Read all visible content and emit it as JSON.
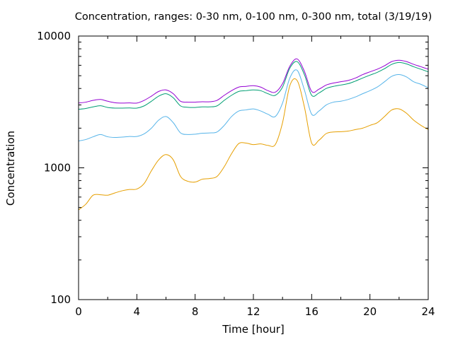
{
  "chart_data": {
    "type": "line",
    "title": "Concentration, ranges: 0-30 nm, 0-100 nm, 0-300 nm, total (3/19/19)",
    "xlabel": "Time [hour]",
    "ylabel": "Concentration",
    "xlim": [
      0,
      24
    ],
    "ylim": [
      100,
      10000
    ],
    "y_scale": "log",
    "grid": false,
    "legend": "none",
    "x_ticks": [
      0,
      4,
      8,
      12,
      16,
      20,
      24
    ],
    "x_tick_labels": [
      "0",
      "4",
      "8",
      "12",
      "16",
      "20",
      "24"
    ],
    "y_ticks": [
      100,
      1000,
      10000
    ],
    "y_tick_labels": [
      "100",
      "1000",
      "10000"
    ],
    "series": [
      {
        "color": "#e69f00",
        "x": [
          0,
          0.5,
          1,
          1.5,
          2,
          2.5,
          3,
          3.5,
          4,
          4.5,
          5,
          5.5,
          6,
          6.5,
          7,
          7.5,
          8,
          8.5,
          9,
          9.5,
          10,
          10.5,
          11,
          11.5,
          12,
          12.5,
          13,
          13.5,
          14,
          14.5,
          15,
          15.5,
          16,
          16.5,
          17,
          17.5,
          18,
          18.5,
          19,
          19.5,
          20,
          20.5,
          21,
          21.5,
          22,
          22.5,
          23,
          23.5,
          24
        ],
        "y": [
          480,
          530,
          620,
          625,
          620,
          645,
          670,
          685,
          690,
          760,
          950,
          1150,
          1260,
          1150,
          860,
          790,
          780,
          820,
          830,
          860,
          1020,
          1280,
          1530,
          1540,
          1500,
          1520,
          1480,
          1500,
          2200,
          4200,
          4600,
          2900,
          1540,
          1620,
          1820,
          1870,
          1880,
          1900,
          1950,
          2000,
          2100,
          2200,
          2450,
          2750,
          2800,
          2600,
          2300,
          2100,
          1950
        ]
      },
      {
        "color": "#56b4e9",
        "x": [
          0,
          0.5,
          1,
          1.5,
          2,
          2.5,
          3,
          3.5,
          4,
          4.5,
          5,
          5.5,
          6,
          6.5,
          7,
          7.5,
          8,
          8.5,
          9,
          9.5,
          10,
          10.5,
          11,
          11.5,
          12,
          12.5,
          13,
          13.5,
          14,
          14.5,
          15,
          15.5,
          16,
          16.5,
          17,
          17.5,
          18,
          18.5,
          19,
          19.5,
          20,
          20.5,
          21,
          21.5,
          22,
          22.5,
          23,
          23.5,
          24
        ],
        "y": [
          1600,
          1640,
          1720,
          1790,
          1720,
          1700,
          1710,
          1730,
          1730,
          1810,
          2000,
          2300,
          2450,
          2200,
          1840,
          1790,
          1800,
          1830,
          1840,
          1870,
          2100,
          2450,
          2700,
          2750,
          2800,
          2700,
          2550,
          2450,
          3100,
          4800,
          5500,
          3900,
          2550,
          2700,
          3000,
          3150,
          3200,
          3300,
          3450,
          3650,
          3850,
          4100,
          4500,
          4950,
          5100,
          4900,
          4500,
          4300,
          4050
        ]
      },
      {
        "color": "#009e73",
        "x": [
          0,
          0.5,
          1,
          1.5,
          2,
          2.5,
          3,
          3.5,
          4,
          4.5,
          5,
          5.5,
          6,
          6.5,
          7,
          7.5,
          8,
          8.5,
          9,
          9.5,
          10,
          10.5,
          11,
          11.5,
          12,
          12.5,
          13,
          13.5,
          14,
          14.5,
          15,
          15.5,
          16,
          16.5,
          17,
          17.5,
          18,
          18.5,
          19,
          19.5,
          20,
          20.5,
          21,
          21.5,
          22,
          22.5,
          23,
          23.5,
          24
        ],
        "y": [
          2780,
          2820,
          2900,
          2960,
          2870,
          2840,
          2840,
          2845,
          2840,
          2950,
          3200,
          3500,
          3650,
          3400,
          2950,
          2880,
          2870,
          2900,
          2900,
          2950,
          3250,
          3550,
          3800,
          3850,
          3900,
          3850,
          3650,
          3550,
          4100,
          5700,
          6400,
          5100,
          3550,
          3700,
          4000,
          4150,
          4250,
          4350,
          4550,
          4800,
          5050,
          5300,
          5650,
          6100,
          6300,
          6150,
          5850,
          5600,
          5350
        ]
      },
      {
        "color": "#9400d3",
        "x": [
          0,
          0.5,
          1,
          1.5,
          2,
          2.5,
          3,
          3.5,
          4,
          4.5,
          5,
          5.5,
          6,
          6.5,
          7,
          7.5,
          8,
          8.5,
          9,
          9.5,
          10,
          10.5,
          11,
          11.5,
          12,
          12.5,
          13,
          13.5,
          14,
          14.5,
          15,
          15.5,
          16,
          16.5,
          17,
          17.5,
          18,
          18.5,
          19,
          19.5,
          20,
          20.5,
          21,
          21.5,
          22,
          22.5,
          23,
          23.5,
          24
        ],
        "y": [
          3100,
          3150,
          3250,
          3300,
          3200,
          3120,
          3100,
          3110,
          3100,
          3250,
          3500,
          3800,
          3900,
          3650,
          3200,
          3150,
          3150,
          3170,
          3170,
          3250,
          3550,
          3850,
          4100,
          4150,
          4200,
          4100,
          3850,
          3750,
          4350,
          5900,
          6700,
          5400,
          3800,
          3950,
          4250,
          4400,
          4500,
          4600,
          4800,
          5100,
          5350,
          5600,
          5950,
          6400,
          6550,
          6400,
          6100,
          5850,
          5600
        ]
      }
    ]
  }
}
